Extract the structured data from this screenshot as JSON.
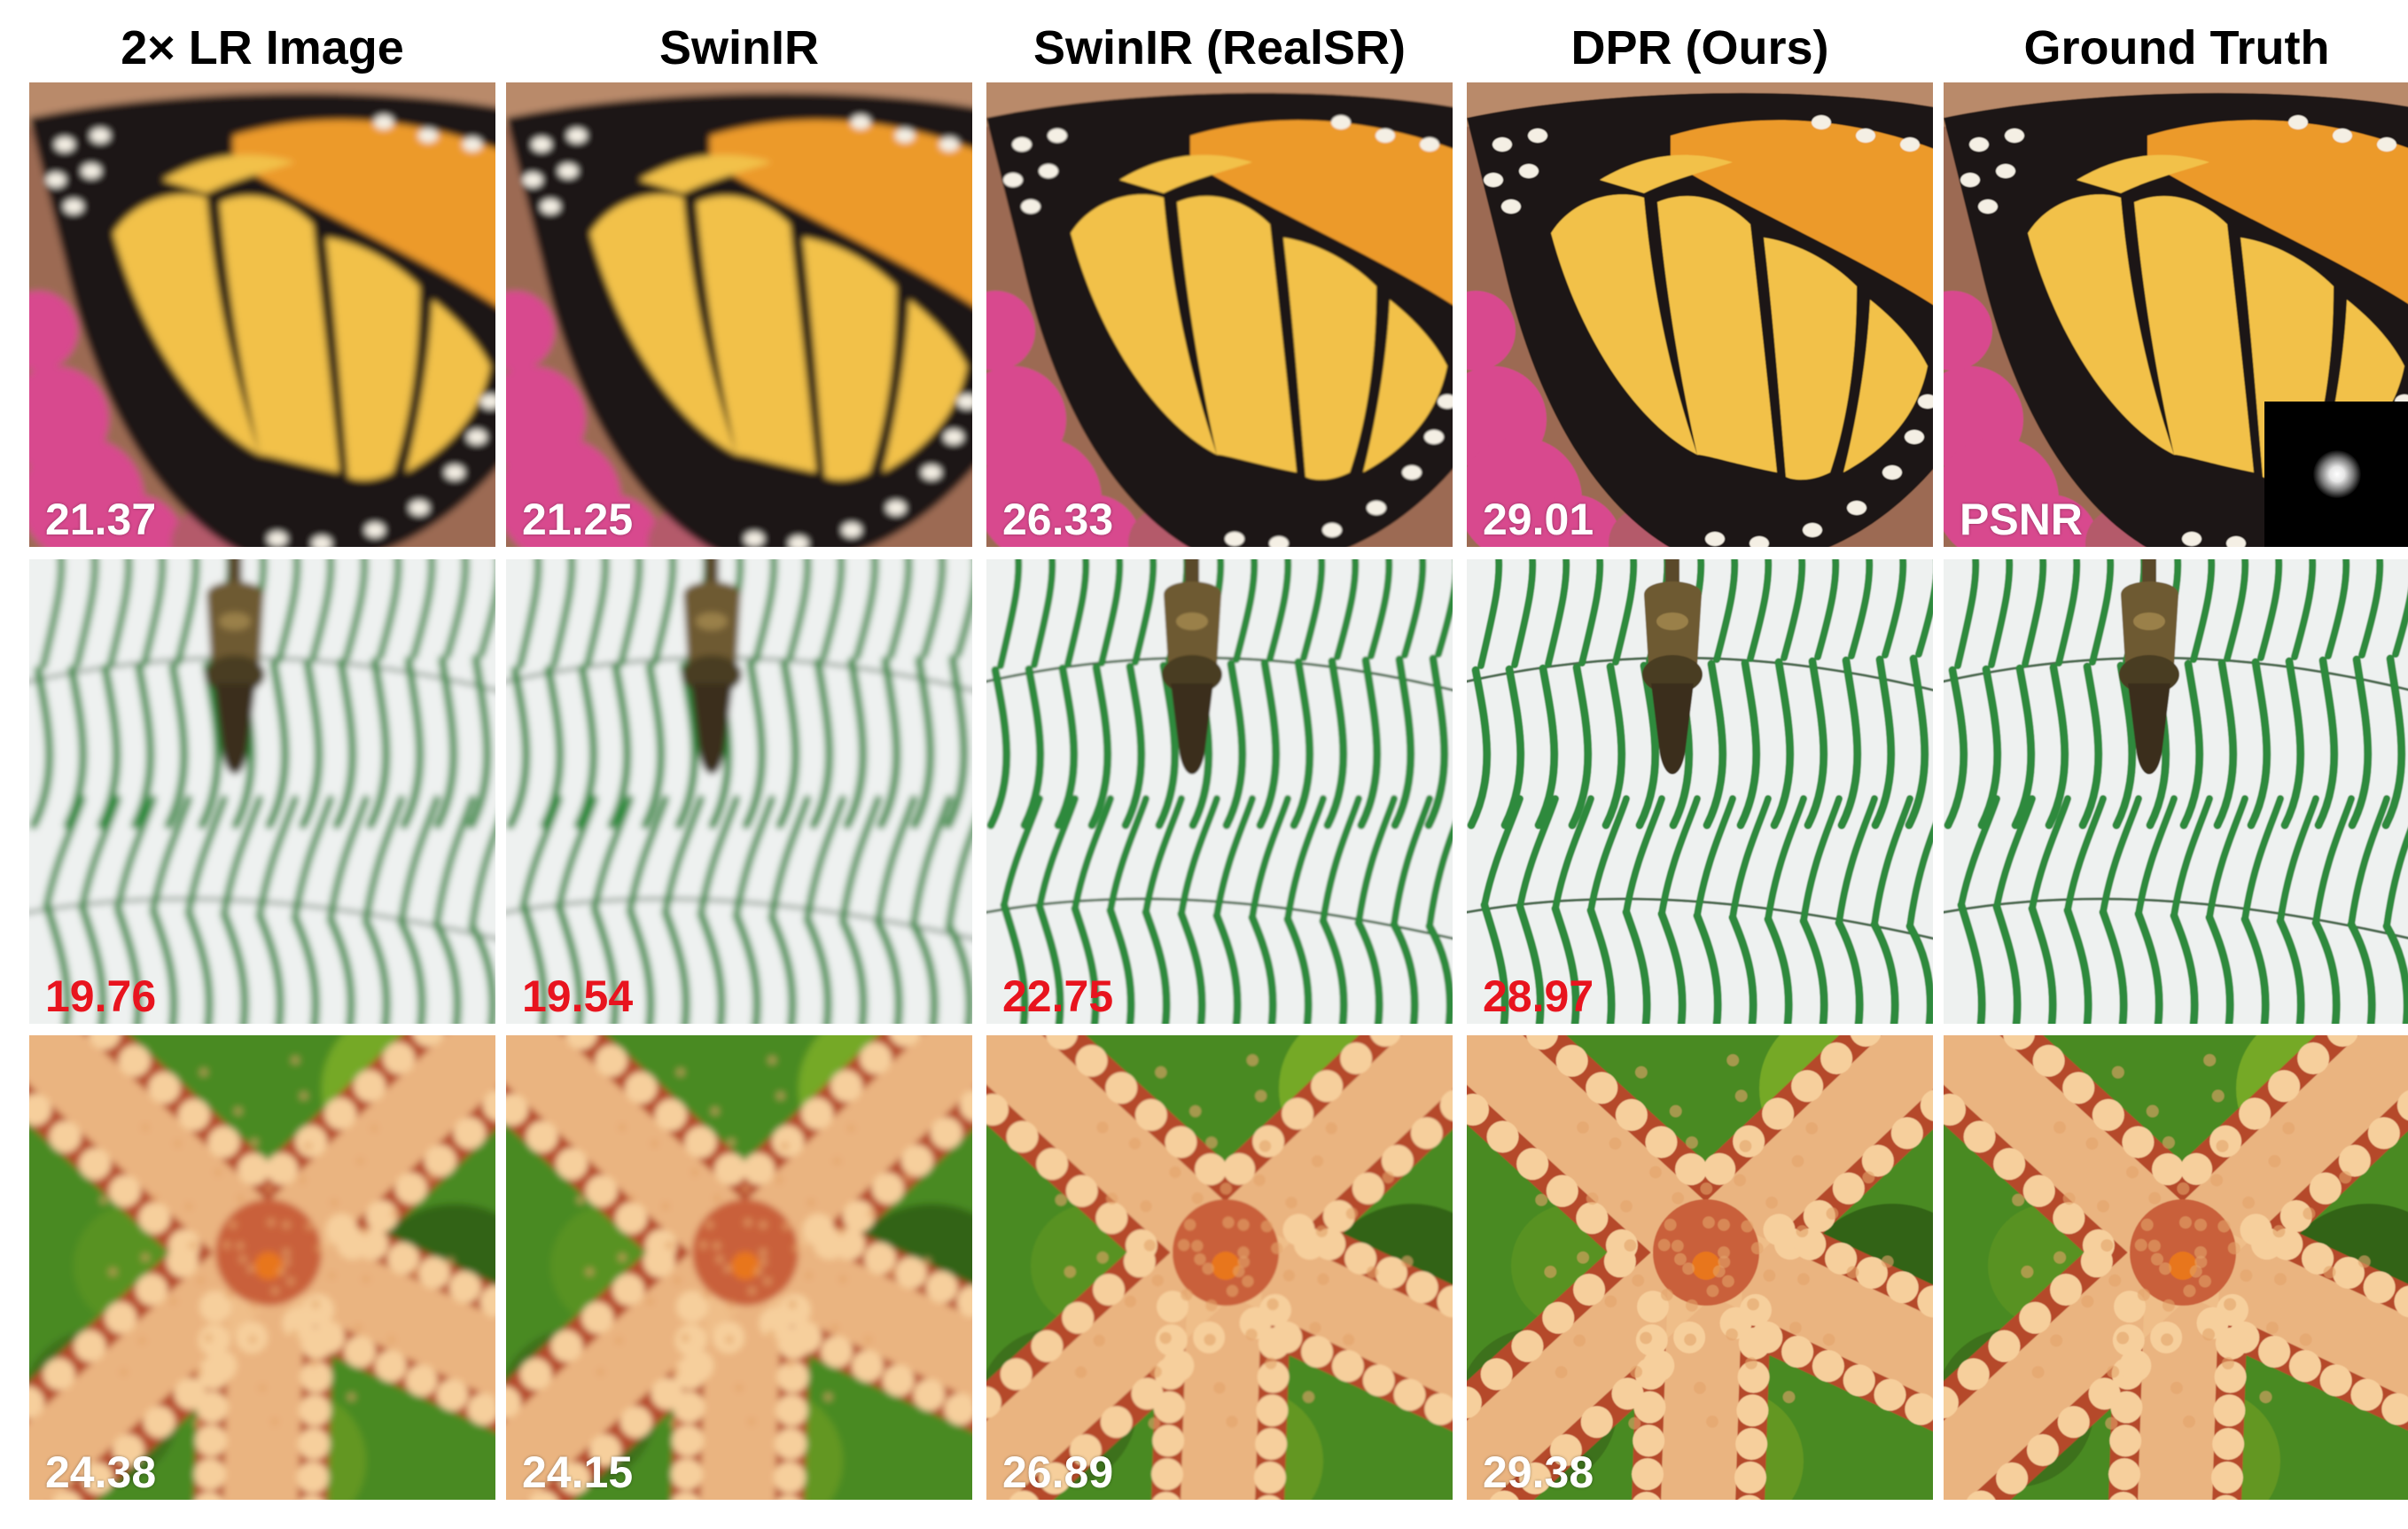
{
  "columns": [
    {
      "title": "2× LR Image"
    },
    {
      "title": "SwinIR"
    },
    {
      "title": "SwinIR (RealSR)"
    },
    {
      "title": "DPR (Ours)"
    },
    {
      "title": "Ground Truth"
    }
  ],
  "rows": [
    {
      "subject": "butterfly-wing",
      "value_color": "#ffffff",
      "values": [
        "21.37",
        "21.25",
        "26.33",
        "29.01"
      ],
      "metric_label": "PSNR"
    },
    {
      "subject": "fern-leaves",
      "value_color": "#e8141e",
      "values": [
        "19.76",
        "19.54",
        "22.75",
        "28.97"
      ]
    },
    {
      "subject": "starfish",
      "value_color": "#ffffff",
      "values": [
        "24.38",
        "24.15",
        "26.89",
        "29.38"
      ]
    }
  ],
  "colors": {
    "background": "#ffffff",
    "red_value": "#e8141e",
    "wing_yellow": "#f2c14a",
    "wing_orange": "#ec9a2a",
    "vein_black": "#1b1512",
    "fern_green": "#2f8a3c",
    "fern_bg": "#eef1f0",
    "starfish_tan": "#f0c08a",
    "starfish_red": "#b5482a",
    "leaf_green": "#4a8a22"
  }
}
